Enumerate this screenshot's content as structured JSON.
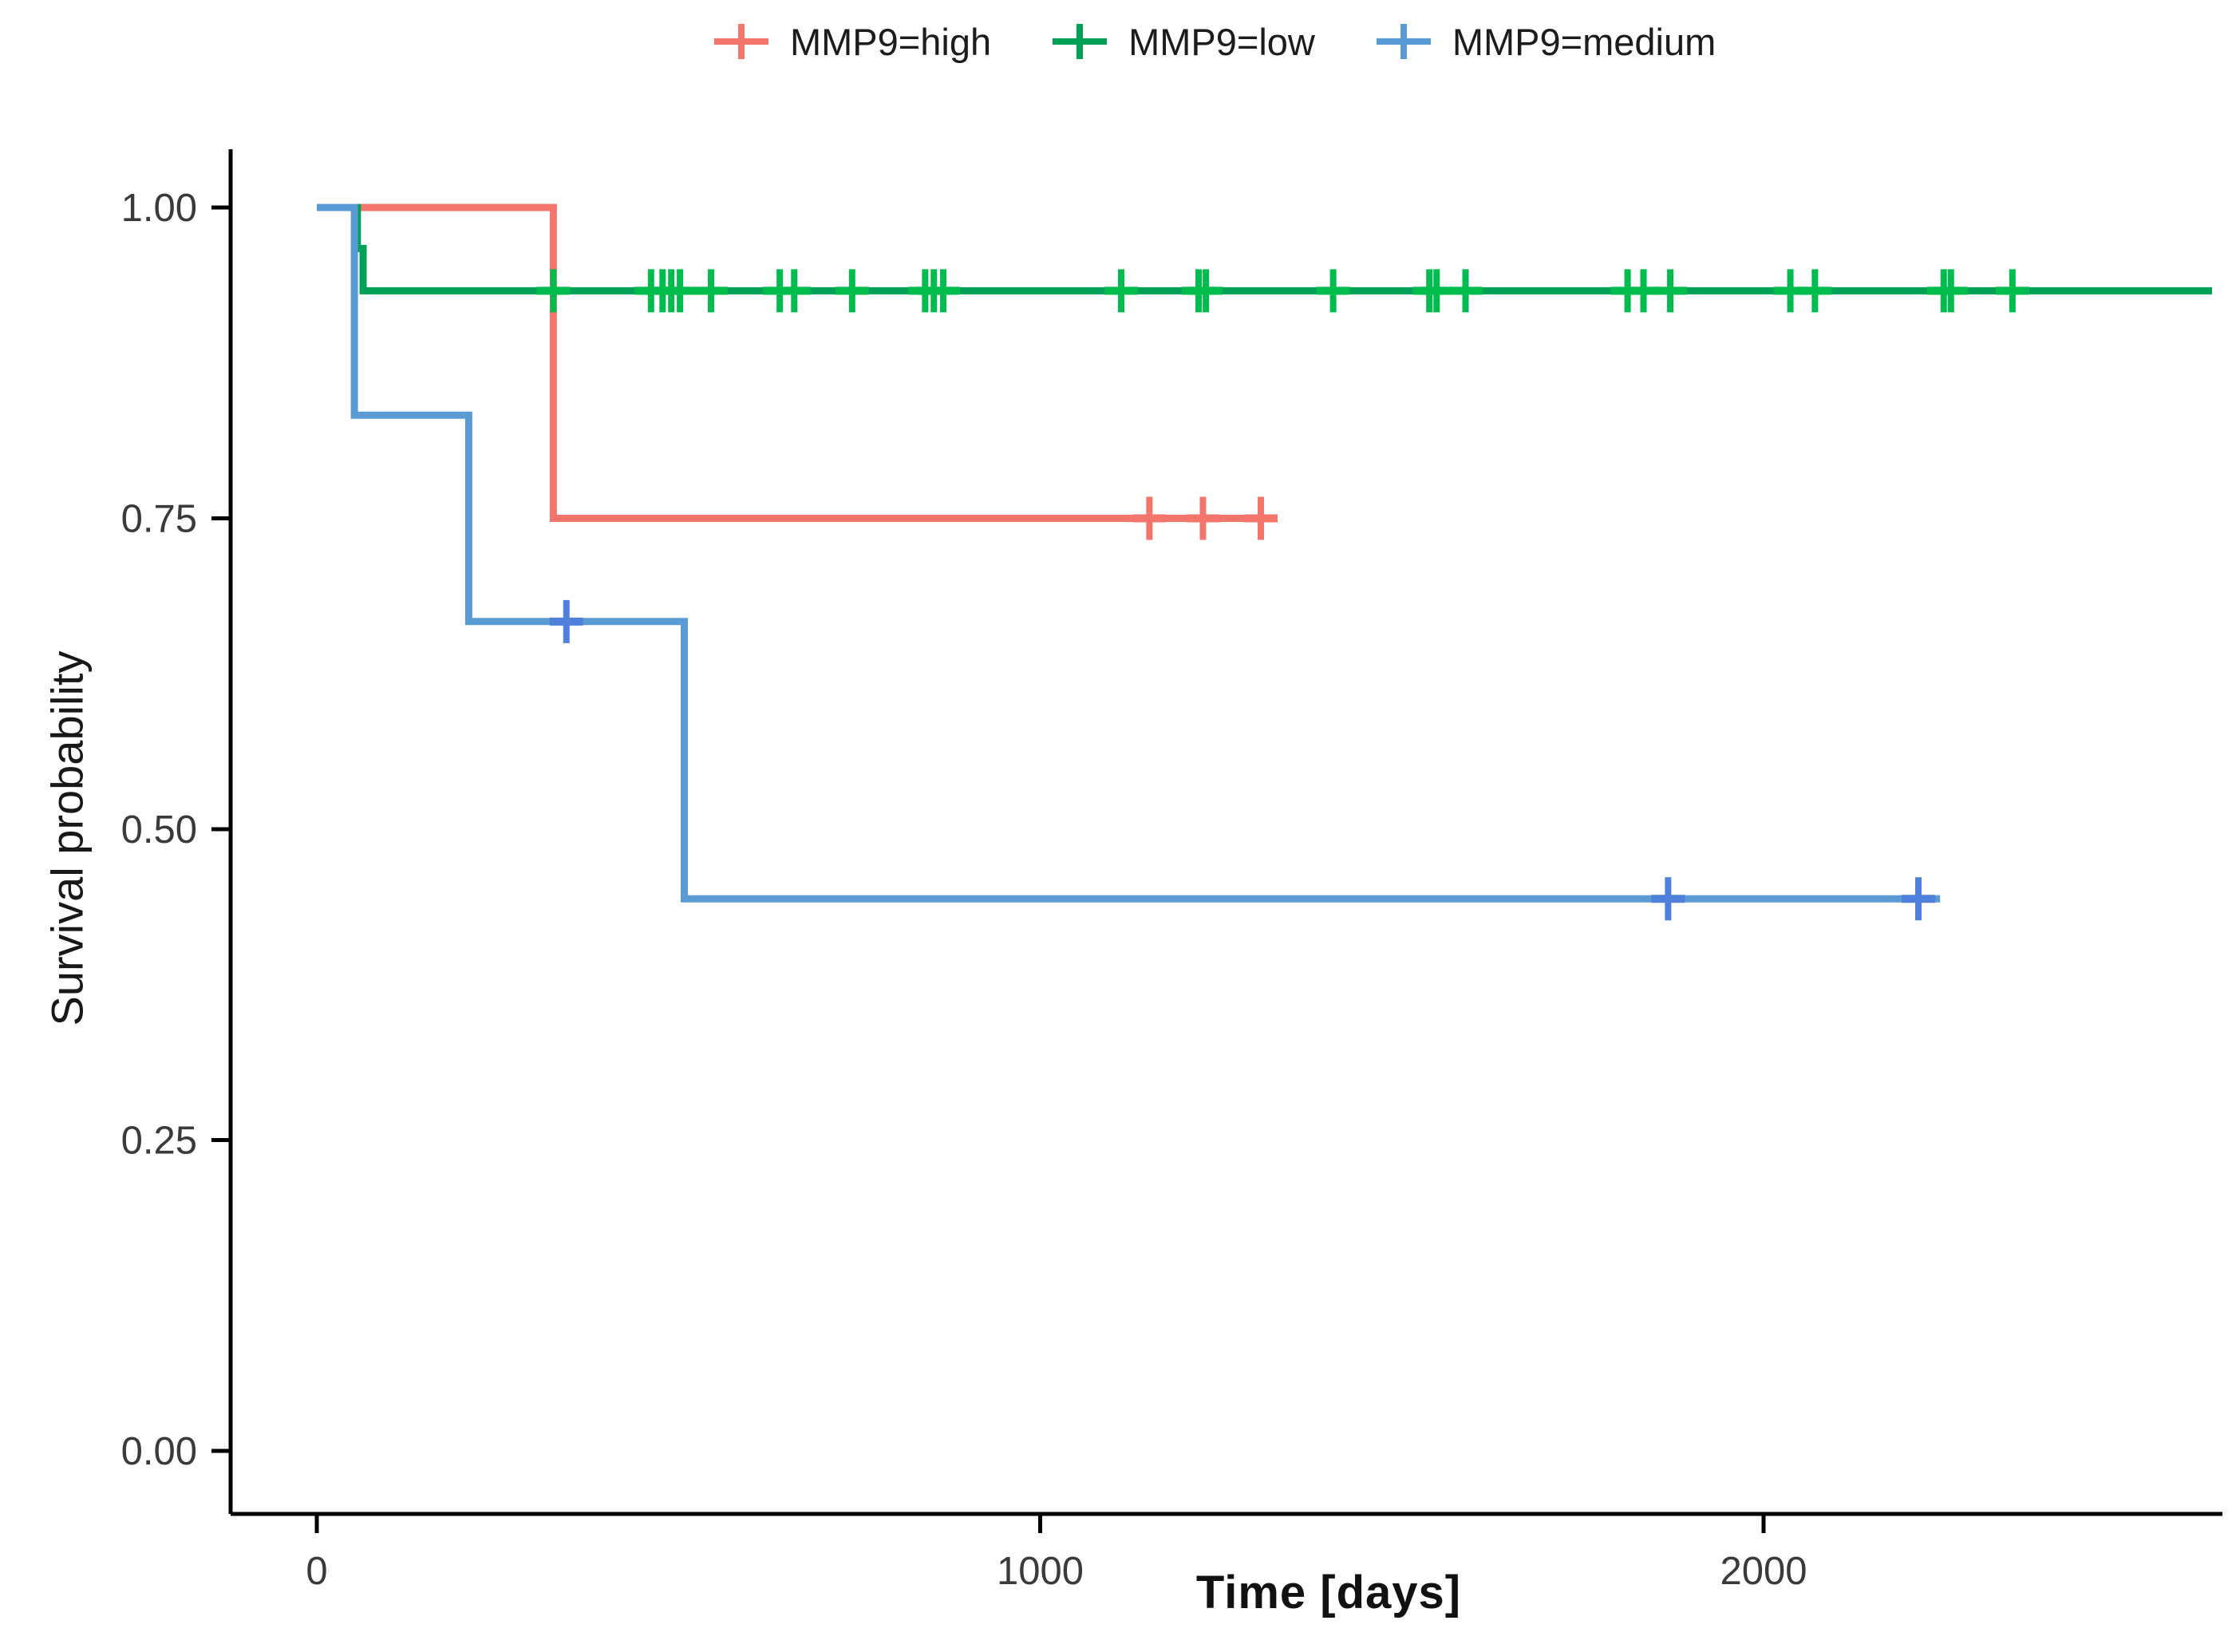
{
  "legend": {
    "items": [
      {
        "label": "MMP9=high",
        "color": "#F4756C",
        "censor_color": "#F4756C"
      },
      {
        "label": "MMP9=low",
        "color": "#00A156",
        "censor_color": "#00BC4E"
      },
      {
        "label": "MMP9=medium",
        "color": "#5B9BD5",
        "censor_color": "#4F80DC"
      }
    ]
  },
  "axes": {
    "x": {
      "label": "Time [days]",
      "ticks": [
        {
          "value": 0,
          "label": "0"
        },
        {
          "value": 1000,
          "label": "1000"
        },
        {
          "value": 2000,
          "label": "2000"
        }
      ]
    },
    "y": {
      "label": "Survival probability",
      "ticks": [
        {
          "value": 1.0,
          "label": "1.00"
        },
        {
          "value": 0.75,
          "label": "0.75"
        },
        {
          "value": 0.5,
          "label": "0.50"
        },
        {
          "value": 0.25,
          "label": "0.25"
        },
        {
          "value": 0.0,
          "label": "0.00"
        }
      ]
    }
  },
  "chart_data": {
    "type": "line",
    "subtype": "kaplan-meier-step-curves-with-censor-marks",
    "title": "",
    "xlabel": "Time [days]",
    "ylabel": "Survival probability",
    "xlim": [
      0,
      2630
    ],
    "ylim": [
      0,
      1.0
    ],
    "grid": false,
    "legend_position": "top-center",
    "series": [
      {
        "name": "MMP9=high",
        "color": "#F4756C",
        "steps": [
          [
            0,
            1.0
          ],
          [
            327,
            1.0
          ],
          [
            327,
            0.75
          ],
          [
            1324,
            0.75
          ]
        ],
        "censors": [
          [
            1151,
            0.75
          ],
          [
            1225,
            0.75
          ],
          [
            1305,
            0.75
          ]
        ]
      },
      {
        "name": "MMP9=low",
        "color": "#00A156",
        "steps": [
          [
            0,
            1.0
          ],
          [
            56,
            1.0
          ],
          [
            56,
            0.967
          ],
          [
            64,
            0.967
          ],
          [
            64,
            0.933
          ],
          [
            2620,
            0.933
          ]
        ],
        "censors": [
          [
            327,
            0.933
          ],
          [
            462,
            0.933
          ],
          [
            478,
            0.933
          ],
          [
            490,
            0.933
          ],
          [
            502,
            0.933
          ],
          [
            545,
            0.933
          ],
          [
            640,
            0.933
          ],
          [
            660,
            0.933
          ],
          [
            740,
            0.933
          ],
          [
            841,
            0.933
          ],
          [
            853,
            0.933
          ],
          [
            866,
            0.933
          ],
          [
            1112,
            0.933
          ],
          [
            1219,
            0.933
          ],
          [
            1229,
            0.933
          ],
          [
            1405,
            0.933
          ],
          [
            1538,
            0.933
          ],
          [
            1548,
            0.933
          ],
          [
            1588,
            0.933
          ],
          [
            1812,
            0.933
          ],
          [
            1834,
            0.933
          ],
          [
            1871,
            0.933
          ],
          [
            2037,
            0.933
          ],
          [
            2071,
            0.933
          ],
          [
            2249,
            0.933
          ],
          [
            2259,
            0.933
          ],
          [
            2344,
            0.933
          ]
        ]
      },
      {
        "name": "MMP9=medium",
        "color": "#5B9BD5",
        "steps": [
          [
            0,
            1.0
          ],
          [
            52,
            1.0
          ],
          [
            52,
            0.833
          ],
          [
            210,
            0.833
          ],
          [
            210,
            0.667
          ],
          [
            508,
            0.667
          ],
          [
            508,
            0.444
          ],
          [
            2244,
            0.444
          ]
        ],
        "censors": [
          [
            345,
            0.667
          ],
          [
            1868,
            0.444
          ],
          [
            2214,
            0.444
          ]
        ]
      }
    ]
  }
}
